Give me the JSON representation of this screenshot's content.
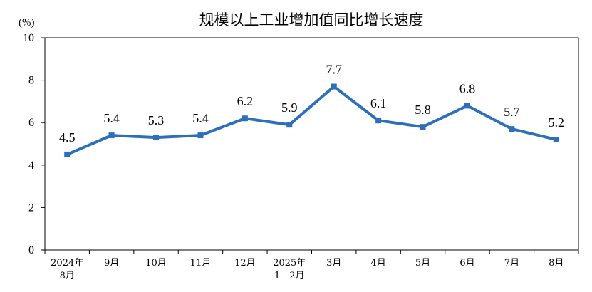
{
  "chart_data": {
    "type": "line",
    "title": "规模以上工业增加值同比增长速度",
    "unit_label": "(%)",
    "xlabel": "",
    "ylabel": "",
    "categories": [
      [
        "2024年",
        "8月"
      ],
      [
        "9月"
      ],
      [
        "10月"
      ],
      [
        "11月"
      ],
      [
        "12月"
      ],
      [
        "2025年",
        "1—2月"
      ],
      [
        "3月"
      ],
      [
        "4月"
      ],
      [
        "5月"
      ],
      [
        "6月"
      ],
      [
        "7月"
      ],
      [
        "8月"
      ]
    ],
    "series": [
      {
        "values": [
          4.5,
          5.4,
          5.3,
          5.4,
          6.2,
          5.9,
          7.7,
          6.1,
          5.8,
          6.8,
          5.7,
          5.2
        ],
        "data_labels": [
          "4.5",
          "5.4",
          "5.3",
          "5.4",
          "6.2",
          "5.9",
          "7.7",
          "6.1",
          "5.8",
          "6.8",
          "5.7",
          "5.2"
        ]
      }
    ],
    "ylim": [
      0,
      10
    ],
    "yticks": [
      "0",
      "2",
      "4",
      "6",
      "8",
      "10"
    ],
    "grid": false,
    "legend": "none",
    "colors": {
      "line": "#2e6fba",
      "axis": "#000000",
      "text": "#000000"
    }
  }
}
